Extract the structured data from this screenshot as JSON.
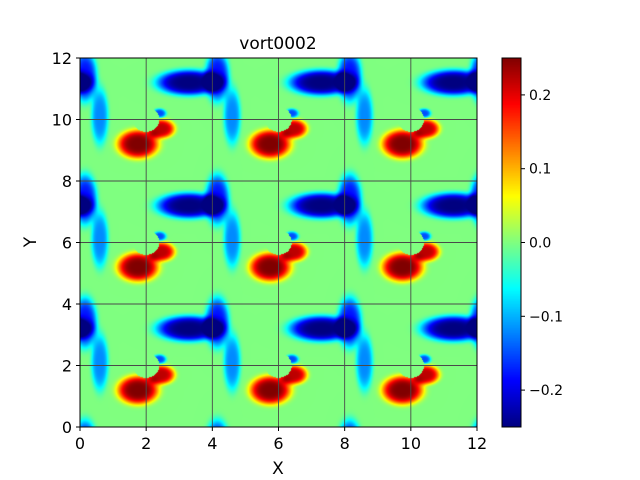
{
  "chart_data": {
    "type": "heatmap",
    "title": "vort0002",
    "xlabel": "X",
    "ylabel": "Y",
    "xlim": [
      0,
      12
    ],
    "ylim": [
      0,
      12
    ],
    "xticks": [
      0,
      2,
      4,
      6,
      8,
      10,
      12
    ],
    "yticks": [
      0,
      2,
      4,
      6,
      8,
      10,
      12
    ],
    "grid": true,
    "colormap": "jet",
    "clim": [
      -0.25,
      0.25
    ],
    "colorbar_ticks": [
      0.2,
      0.1,
      0.0,
      -0.1,
      -0.2
    ],
    "colorbar_tick_labels": [
      "0.2",
      "0.1",
      "0.0",
      "−0.1",
      "−0.2"
    ],
    "field": {
      "periodic_cell": 4,
      "cylinder": {
        "center": [
          2,
          2
        ],
        "radius": 0.4,
        "value": 0.0
      },
      "features": [
        {
          "name": "positive-vortex",
          "center": [
            1.75,
            1.2
          ],
          "radii": [
            0.6,
            0.45
          ],
          "value": 0.25
        },
        {
          "name": "positive-tongue",
          "center": [
            2.45,
            1.7
          ],
          "radii": [
            0.4,
            0.3
          ],
          "value": 0.22
        },
        {
          "name": "negative-band",
          "center": [
            3.3,
            3.2
          ],
          "radii": [
            0.95,
            0.4
          ],
          "value": -0.25
        },
        {
          "name": "negative-upper-left",
          "center": [
            0.15,
            3.4
          ],
          "radii": [
            0.35,
            0.8
          ],
          "value": -0.18
        },
        {
          "name": "shear-streak",
          "center": [
            0.6,
            2.1
          ],
          "radii": [
            0.25,
            0.9
          ],
          "value": -0.12
        },
        {
          "name": "cylinder-edge",
          "center": [
            2.4,
            2.2
          ],
          "radii": [
            0.2,
            0.15
          ],
          "value": -0.15
        }
      ]
    }
  }
}
